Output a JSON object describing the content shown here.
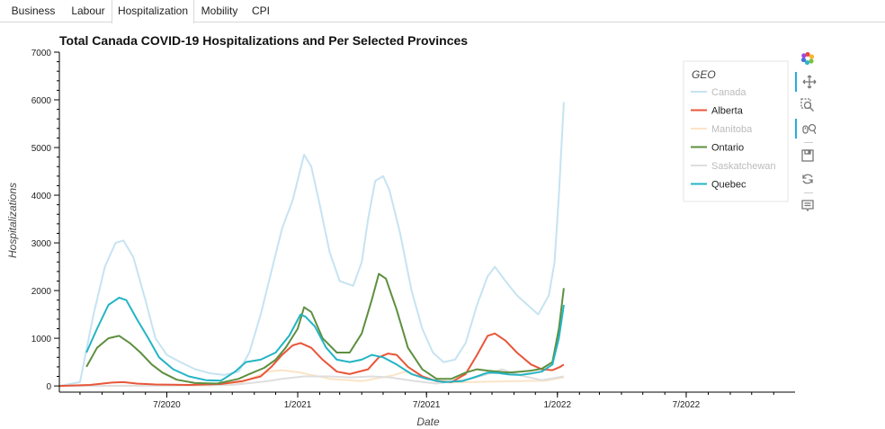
{
  "tabs": [
    {
      "label": "Business",
      "active": false
    },
    {
      "label": "Labour",
      "active": false
    },
    {
      "label": "Hospitalization",
      "active": true
    },
    {
      "label": "Mobility",
      "active": false
    },
    {
      "label": "CPI",
      "active": false
    }
  ],
  "toolbar": [
    {
      "icon": "bokeh-logo-icon",
      "active": false
    },
    {
      "icon": "pan-icon",
      "active": true
    },
    {
      "icon": "box-zoom-icon",
      "active": false
    },
    {
      "icon": "wheel-zoom-icon",
      "active": true
    },
    {
      "icon": "save-icon",
      "active": false
    },
    {
      "icon": "reset-icon",
      "active": false
    },
    {
      "icon": "hover-icon",
      "active": false
    }
  ],
  "chart_data": {
    "type": "line",
    "title": "Total Canada COVID-19 Hospitalizations and Per Selected Provinces",
    "xlabel": "Date",
    "ylabel": "Hospitalizations",
    "xlim": [
      "2020-02-01",
      "2022-12-01"
    ],
    "ylim": [
      -130,
      7000
    ],
    "y_ticks": [
      0,
      1000,
      2000,
      3000,
      4000,
      5000,
      6000,
      7000
    ],
    "x_ticks": [
      {
        "date": "2020-07-01",
        "label": "7/2020"
      },
      {
        "date": "2021-01-01",
        "label": "1/2021"
      },
      {
        "date": "2021-07-01",
        "label": "7/2021"
      },
      {
        "date": "2022-01-01",
        "label": "1/2022"
      },
      {
        "date": "2022-07-01",
        "label": "7/2022"
      }
    ],
    "legend": {
      "title": "GEO",
      "position": "top-right"
    },
    "series": [
      {
        "name": "Canada",
        "color": "#c6e3f2",
        "muted": true,
        "points": [
          [
            "2020-02-01",
            0
          ],
          [
            "2020-03-01",
            80
          ],
          [
            "2020-03-20",
            1500
          ],
          [
            "2020-04-05",
            2500
          ],
          [
            "2020-04-20",
            3000
          ],
          [
            "2020-05-01",
            3050
          ],
          [
            "2020-05-15",
            2700
          ],
          [
            "2020-06-01",
            1800
          ],
          [
            "2020-06-15",
            1000
          ],
          [
            "2020-07-01",
            650
          ],
          [
            "2020-07-20",
            500
          ],
          [
            "2020-08-10",
            350
          ],
          [
            "2020-09-01",
            260
          ],
          [
            "2020-09-20",
            230
          ],
          [
            "2020-10-10",
            300
          ],
          [
            "2020-10-25",
            700
          ],
          [
            "2020-11-10",
            1500
          ],
          [
            "2020-11-25",
            2400
          ],
          [
            "2020-12-10",
            3300
          ],
          [
            "2020-12-25",
            3900
          ],
          [
            "2021-01-10",
            4850
          ],
          [
            "2021-01-20",
            4600
          ],
          [
            "2021-02-01",
            3800
          ],
          [
            "2021-02-15",
            2800
          ],
          [
            "2021-03-01",
            2200
          ],
          [
            "2021-03-20",
            2100
          ],
          [
            "2021-04-01",
            2600
          ],
          [
            "2021-04-10",
            3500
          ],
          [
            "2021-04-20",
            4300
          ],
          [
            "2021-05-01",
            4400
          ],
          [
            "2021-05-10",
            4100
          ],
          [
            "2021-05-25",
            3200
          ],
          [
            "2021-06-10",
            2000
          ],
          [
            "2021-06-25",
            1200
          ],
          [
            "2021-07-10",
            700
          ],
          [
            "2021-07-25",
            500
          ],
          [
            "2021-08-10",
            550
          ],
          [
            "2021-08-25",
            900
          ],
          [
            "2021-09-10",
            1700
          ],
          [
            "2021-09-25",
            2300
          ],
          [
            "2021-10-05",
            2500
          ],
          [
            "2021-10-20",
            2200
          ],
          [
            "2021-11-05",
            1900
          ],
          [
            "2021-11-20",
            1700
          ],
          [
            "2021-12-05",
            1500
          ],
          [
            "2021-12-20",
            1900
          ],
          [
            "2021-12-28",
            2600
          ],
          [
            "2022-01-03",
            4000
          ],
          [
            "2022-01-07",
            5100
          ],
          [
            "2022-01-10",
            5950
          ]
        ]
      },
      {
        "name": "Alberta",
        "color": "#e8563a",
        "muted": false,
        "points": [
          [
            "2020-02-01",
            0
          ],
          [
            "2020-03-15",
            20
          ],
          [
            "2020-04-15",
            70
          ],
          [
            "2020-05-01",
            80
          ],
          [
            "2020-05-20",
            50
          ],
          [
            "2020-06-15",
            30
          ],
          [
            "2020-08-01",
            20
          ],
          [
            "2020-09-15",
            40
          ],
          [
            "2020-10-15",
            100
          ],
          [
            "2020-11-10",
            200
          ],
          [
            "2020-11-25",
            400
          ],
          [
            "2020-12-10",
            650
          ],
          [
            "2020-12-25",
            850
          ],
          [
            "2021-01-05",
            900
          ],
          [
            "2021-01-20",
            800
          ],
          [
            "2021-02-05",
            550
          ],
          [
            "2021-02-25",
            300
          ],
          [
            "2021-03-15",
            250
          ],
          [
            "2021-04-10",
            350
          ],
          [
            "2021-04-25",
            600
          ],
          [
            "2021-05-08",
            680
          ],
          [
            "2021-05-20",
            650
          ],
          [
            "2021-06-05",
            400
          ],
          [
            "2021-06-25",
            200
          ],
          [
            "2021-07-15",
            100
          ],
          [
            "2021-08-05",
            80
          ],
          [
            "2021-08-25",
            250
          ],
          [
            "2021-09-10",
            650
          ],
          [
            "2021-09-25",
            1050
          ],
          [
            "2021-10-05",
            1100
          ],
          [
            "2021-10-20",
            950
          ],
          [
            "2021-11-05",
            700
          ],
          [
            "2021-11-25",
            450
          ],
          [
            "2021-12-10",
            350
          ],
          [
            "2021-12-25",
            330
          ],
          [
            "2022-01-05",
            400
          ],
          [
            "2022-01-10",
            450
          ]
        ]
      },
      {
        "name": "Manitoba",
        "color": "#fbe4c7",
        "muted": true,
        "points": [
          [
            "2020-02-01",
            0
          ],
          [
            "2020-06-01",
            5
          ],
          [
            "2020-09-01",
            10
          ],
          [
            "2020-10-15",
            80
          ],
          [
            "2020-11-20",
            300
          ],
          [
            "2020-12-10",
            330
          ],
          [
            "2021-01-05",
            280
          ],
          [
            "2021-02-15",
            150
          ],
          [
            "2021-04-01",
            100
          ],
          [
            "2021-05-15",
            220
          ],
          [
            "2021-06-01",
            300
          ],
          [
            "2021-06-25",
            180
          ],
          [
            "2021-08-01",
            70
          ],
          [
            "2021-10-01",
            90
          ],
          [
            "2021-12-15",
            110
          ],
          [
            "2022-01-10",
            180
          ]
        ]
      },
      {
        "name": "Ontario",
        "color": "#5e8f3f",
        "muted": false,
        "points": [
          [
            "2020-03-10",
            400
          ],
          [
            "2020-03-25",
            800
          ],
          [
            "2020-04-10",
            1000
          ],
          [
            "2020-04-25",
            1050
          ],
          [
            "2020-05-10",
            900
          ],
          [
            "2020-05-25",
            700
          ],
          [
            "2020-06-10",
            450
          ],
          [
            "2020-06-25",
            280
          ],
          [
            "2020-07-15",
            130
          ],
          [
            "2020-08-10",
            60
          ],
          [
            "2020-09-10",
            50
          ],
          [
            "2020-10-10",
            150
          ],
          [
            "2020-10-25",
            250
          ],
          [
            "2020-11-15",
            380
          ],
          [
            "2020-12-01",
            550
          ],
          [
            "2020-12-15",
            800
          ],
          [
            "2021-01-01",
            1200
          ],
          [
            "2021-01-10",
            1650
          ],
          [
            "2021-01-20",
            1550
          ],
          [
            "2021-02-05",
            1000
          ],
          [
            "2021-02-25",
            700
          ],
          [
            "2021-03-15",
            700
          ],
          [
            "2021-04-01",
            1100
          ],
          [
            "2021-04-15",
            1800
          ],
          [
            "2021-04-25",
            2350
          ],
          [
            "2021-05-05",
            2250
          ],
          [
            "2021-05-20",
            1600
          ],
          [
            "2021-06-05",
            800
          ],
          [
            "2021-06-25",
            350
          ],
          [
            "2021-07-15",
            150
          ],
          [
            "2021-08-05",
            150
          ],
          [
            "2021-08-25",
            280
          ],
          [
            "2021-09-10",
            350
          ],
          [
            "2021-09-25",
            320
          ],
          [
            "2021-10-10",
            300
          ],
          [
            "2021-10-25",
            280
          ],
          [
            "2021-11-10",
            300
          ],
          [
            "2021-11-25",
            320
          ],
          [
            "2021-12-10",
            360
          ],
          [
            "2021-12-25",
            500
          ],
          [
            "2022-01-03",
            1200
          ],
          [
            "2022-01-10",
            2050
          ]
        ]
      },
      {
        "name": "Saskatchewan",
        "color": "#dedede",
        "muted": true,
        "points": [
          [
            "2020-02-01",
            0
          ],
          [
            "2020-07-01",
            5
          ],
          [
            "2020-10-01",
            20
          ],
          [
            "2020-11-15",
            90
          ],
          [
            "2020-12-10",
            150
          ],
          [
            "2021-01-10",
            200
          ],
          [
            "2021-02-15",
            200
          ],
          [
            "2021-03-15",
            180
          ],
          [
            "2021-04-15",
            200
          ],
          [
            "2021-05-10",
            180
          ],
          [
            "2021-06-15",
            100
          ],
          [
            "2021-07-15",
            50
          ],
          [
            "2021-09-01",
            150
          ],
          [
            "2021-09-25",
            250
          ],
          [
            "2021-10-15",
            350
          ],
          [
            "2021-11-10",
            220
          ],
          [
            "2021-12-10",
            120
          ],
          [
            "2022-01-10",
            200
          ]
        ]
      },
      {
        "name": "Quebec",
        "color": "#23b4c4",
        "muted": false,
        "points": [
          [
            "2020-03-10",
            700
          ],
          [
            "2020-03-25",
            1200
          ],
          [
            "2020-04-10",
            1700
          ],
          [
            "2020-04-25",
            1850
          ],
          [
            "2020-05-05",
            1800
          ],
          [
            "2020-05-20",
            1400
          ],
          [
            "2020-06-05",
            1000
          ],
          [
            "2020-06-20",
            600
          ],
          [
            "2020-07-10",
            350
          ],
          [
            "2020-08-01",
            200
          ],
          [
            "2020-08-25",
            120
          ],
          [
            "2020-09-15",
            110
          ],
          [
            "2020-10-05",
            300
          ],
          [
            "2020-10-20",
            500
          ],
          [
            "2020-11-10",
            550
          ],
          [
            "2020-12-01",
            700
          ],
          [
            "2020-12-20",
            1050
          ],
          [
            "2021-01-05",
            1500
          ],
          [
            "2021-01-12",
            1450
          ],
          [
            "2021-01-25",
            1250
          ],
          [
            "2021-02-10",
            800
          ],
          [
            "2021-02-25",
            550
          ],
          [
            "2021-03-15",
            500
          ],
          [
            "2021-04-01",
            550
          ],
          [
            "2021-04-15",
            650
          ],
          [
            "2021-05-01",
            600
          ],
          [
            "2021-05-20",
            450
          ],
          [
            "2021-06-10",
            250
          ],
          [
            "2021-07-01",
            150
          ],
          [
            "2021-07-25",
            80
          ],
          [
            "2021-08-20",
            100
          ],
          [
            "2021-09-10",
            200
          ],
          [
            "2021-09-25",
            280
          ],
          [
            "2021-10-10",
            270
          ],
          [
            "2021-10-25",
            240
          ],
          [
            "2021-11-10",
            230
          ],
          [
            "2021-11-25",
            260
          ],
          [
            "2021-12-10",
            300
          ],
          [
            "2021-12-25",
            450
          ],
          [
            "2022-01-03",
            1000
          ],
          [
            "2022-01-10",
            1700
          ]
        ]
      }
    ]
  }
}
